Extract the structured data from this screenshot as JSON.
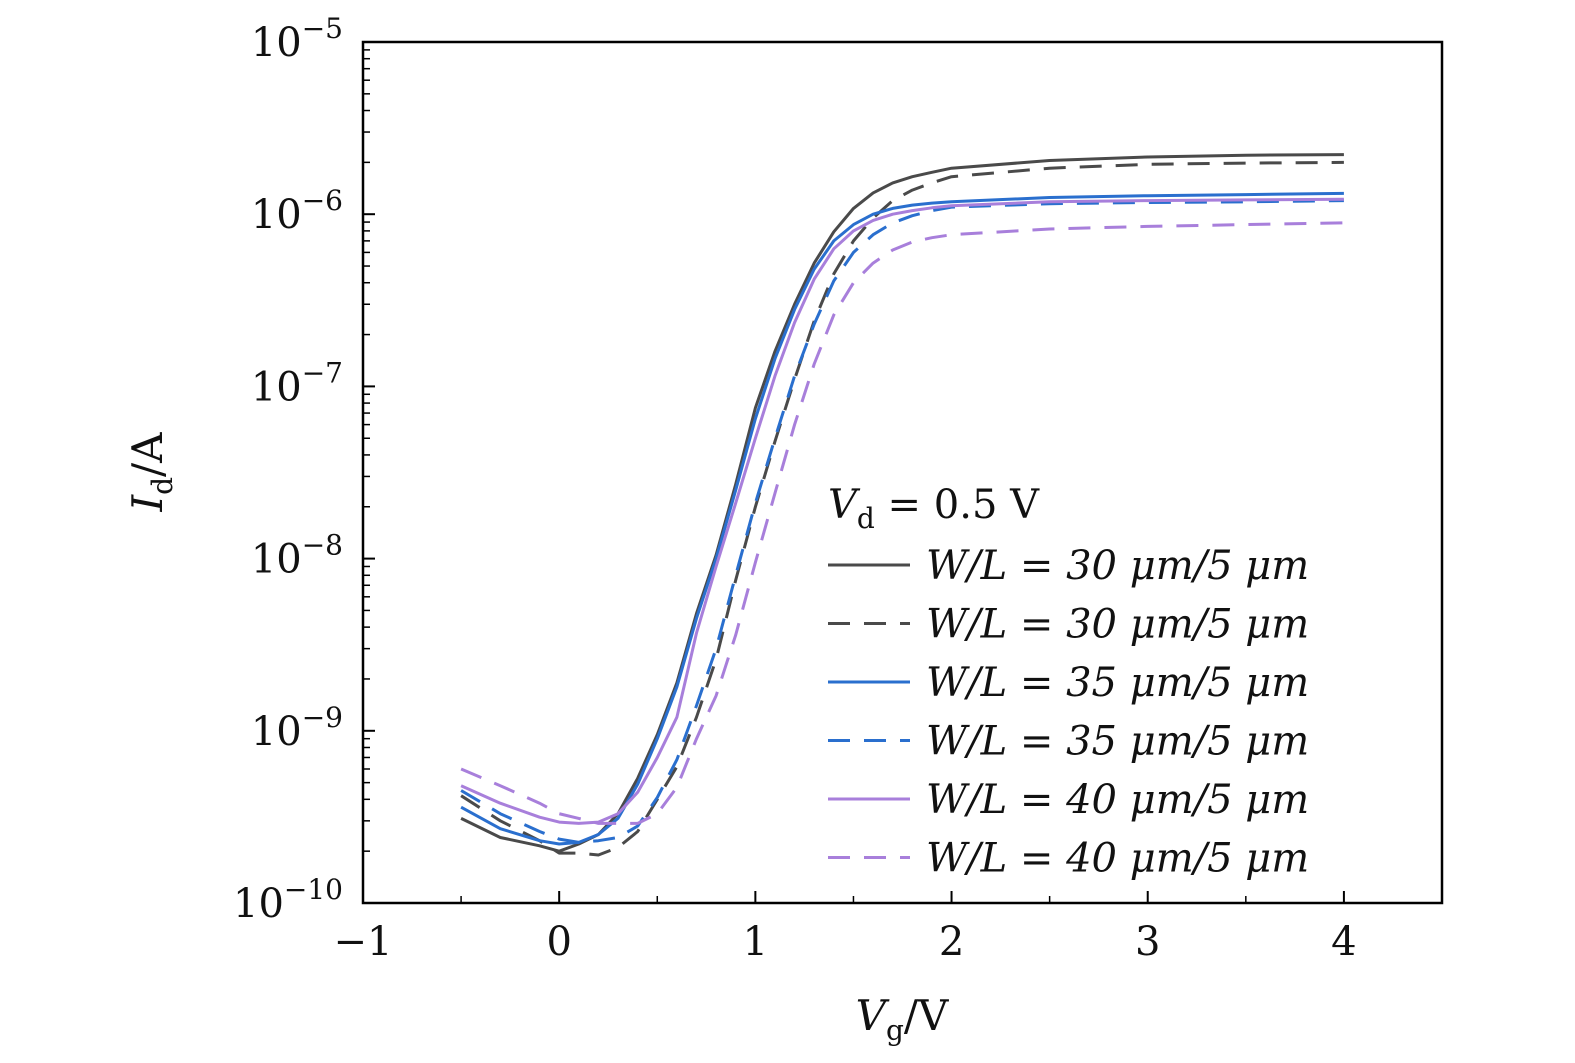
{
  "chart_data": {
    "type": "line",
    "y_scale": "log",
    "xlabel": {
      "main": "V",
      "sub": "g",
      "unit": "/V"
    },
    "ylabel": {
      "main": "I",
      "sub": "d",
      "unit": "/A"
    },
    "xlim": [
      -1,
      4.5
    ],
    "ylim": [
      1e-10,
      1e-05
    ],
    "xticks": [
      "−1",
      "0",
      "1",
      "2",
      "3",
      "4"
    ],
    "yticks": [
      {
        "base": "10",
        "exp": "−10"
      },
      {
        "base": "10",
        "exp": "−9"
      },
      {
        "base": "10",
        "exp": "−8"
      },
      {
        "base": "10",
        "exp": "−7"
      },
      {
        "base": "10",
        "exp": "−6"
      },
      {
        "base": "10",
        "exp": "−5"
      }
    ],
    "legend": {
      "position": "lower-right",
      "title": {
        "main": "V",
        "sub": "d",
        "rest": " = 0.5 V"
      }
    },
    "x": [
      -0.5,
      -0.3,
      -0.1,
      0.0,
      0.1,
      0.2,
      0.3,
      0.4,
      0.5,
      0.6,
      0.7,
      0.8,
      0.9,
      1.0,
      1.1,
      1.2,
      1.3,
      1.4,
      1.5,
      1.6,
      1.7,
      1.8,
      1.9,
      2.0,
      2.5,
      3.0,
      3.5,
      4.0
    ],
    "series": [
      {
        "name": "W/L = 30 μm/5 μm",
        "color": "#4a4a4a",
        "dash": "solid",
        "values": [
          3.1e-10,
          2.4e-10,
          2.15e-10,
          2e-10,
          2.2e-10,
          2.5e-10,
          3.3e-10,
          5.3e-10,
          9.5e-10,
          1.9e-09,
          4.8e-09,
          1.05e-08,
          2.7e-08,
          7.5e-08,
          1.6e-07,
          3e-07,
          5.2e-07,
          7.9e-07,
          1.08e-06,
          1.33e-06,
          1.52e-06,
          1.65e-06,
          1.75e-06,
          1.85e-06,
          2.05e-06,
          2.15e-06,
          2.2e-06,
          2.22e-06
        ]
      },
      {
        "name": "W/L = 30 μm/5 μm",
        "color": "#4a4a4a",
        "dash": "dashed",
        "values": [
          4.2e-10,
          3e-10,
          2.3e-10,
          1.95e-10,
          1.95e-10,
          1.9e-10,
          2.1e-10,
          2.6e-10,
          4e-10,
          6.2e-10,
          1.2e-09,
          2.6e-09,
          7.5e-09,
          2e-08,
          4.8e-08,
          1.1e-07,
          2.4e-07,
          4.5e-07,
          7e-07,
          9.5e-07,
          1.2e-06,
          1.38e-06,
          1.52e-06,
          1.65e-06,
          1.85e-06,
          1.95e-06,
          1.98e-06,
          2e-06
        ]
      },
      {
        "name": "W/L = 35 μm/5 μm",
        "color": "#2a6fce",
        "dash": "solid",
        "values": [
          3.6e-10,
          2.7e-10,
          2.3e-10,
          2.2e-10,
          2.25e-10,
          2.5e-10,
          3.1e-10,
          4.9e-10,
          9e-10,
          1.8e-09,
          4.5e-09,
          1e-08,
          2.5e-08,
          6.5e-08,
          1.45e-07,
          2.8e-07,
          4.8e-07,
          7e-07,
          8.7e-07,
          1e-06,
          1.08e-06,
          1.13e-06,
          1.16e-06,
          1.18e-06,
          1.25e-06,
          1.28e-06,
          1.3e-06,
          1.32e-06
        ]
      },
      {
        "name": "W/L = 35 μm/5 μm",
        "color": "#2a6fce",
        "dash": "dashed",
        "values": [
          4.5e-10,
          3.3e-10,
          2.6e-10,
          2.35e-10,
          2.25e-10,
          2.3e-10,
          2.4e-10,
          2.8e-10,
          4.1e-10,
          6.8e-10,
          1.4e-09,
          3e-09,
          8e-09,
          2.1e-08,
          5e-08,
          1.15e-07,
          2.3e-07,
          4.1e-07,
          6e-07,
          7.6e-07,
          8.9e-07,
          9.8e-07,
          1.05e-06,
          1.1e-06,
          1.15e-06,
          1.17e-06,
          1.18e-06,
          1.2e-06
        ]
      },
      {
        "name": "W/L = 40 μm/5 μm",
        "color": "#a87fdb",
        "dash": "solid",
        "values": [
          4.8e-10,
          3.8e-10,
          3.15e-10,
          2.95e-10,
          2.9e-10,
          2.95e-10,
          3.3e-10,
          4.4e-10,
          7e-10,
          1.2e-09,
          3.7e-09,
          9e-09,
          2.1e-08,
          5e-08,
          1.15e-07,
          2.35e-07,
          4.2e-07,
          6.3e-07,
          8e-07,
          9.2e-07,
          1e-06,
          1.05e-06,
          1.09e-06,
          1.12e-06,
          1.18e-06,
          1.2e-06,
          1.21e-06,
          1.22e-06
        ]
      },
      {
        "name": "W/L = 40 μm/5 μm",
        "color": "#a87fdb",
        "dash": "dashed",
        "values": [
          6e-10,
          4.8e-10,
          3.8e-10,
          3.3e-10,
          3.1e-10,
          2.9e-10,
          2.9e-10,
          2.9e-10,
          3.3e-10,
          4.7e-10,
          9e-10,
          1.6e-09,
          3.6e-09,
          9.5e-09,
          2.4e-08,
          6e-08,
          1.35e-07,
          2.6e-07,
          4e-07,
          5.2e-07,
          6.2e-07,
          6.9e-07,
          7.3e-07,
          7.6e-07,
          8.2e-07,
          8.5e-07,
          8.7e-07,
          8.9e-07
        ]
      }
    ]
  }
}
